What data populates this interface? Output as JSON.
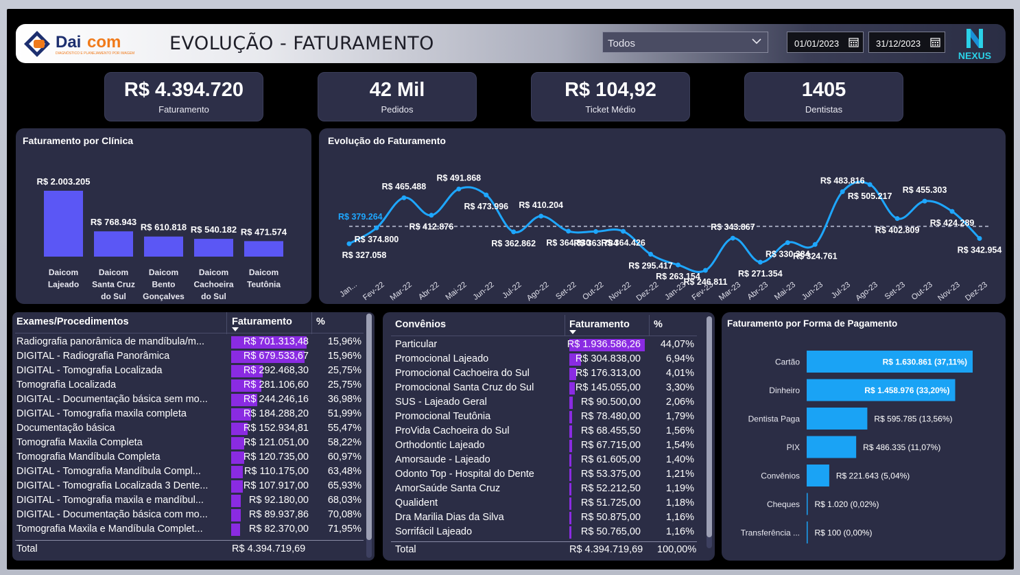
{
  "header": {
    "logo_text_dai": "Dai",
    "logo_text_com": "com",
    "logo_tagline": "DIAGNÓSTICO E PLANEJAMENTO POR IMAGEM",
    "title": "EVOLUÇÃO - FATURAMENTO",
    "filter_value": "Todos",
    "date_start": "01/01/2023",
    "date_end": "31/12/2023",
    "brand": "NEXUS"
  },
  "kpis": [
    {
      "value": "R$ 4.394.720",
      "label": "Faturamento"
    },
    {
      "value": "42 Mil",
      "label": "Pedidos"
    },
    {
      "value": "R$ 104,92",
      "label": "Ticket Médio"
    },
    {
      "value": "1405",
      "label": "Dentistas"
    }
  ],
  "clinic_chart": {
    "title": "Faturamento por Clínica",
    "chart_data": {
      "type": "bar",
      "categories": [
        "Daicom Lajeado",
        "Daicom Santa Cruz do Sul",
        "Daicom Bento Gonçalves",
        "Daicom Cachoeira do Sul",
        "Daicom Teutônia"
      ],
      "category_lines": [
        [
          "Daicom",
          "Lajeado"
        ],
        [
          "Daicom",
          "Santa Cruz",
          "do Sul"
        ],
        [
          "Daicom",
          "Bento",
          "Gonçalves"
        ],
        [
          "Daicom",
          "Cachoeira",
          "do Sul"
        ],
        [
          "Daicom",
          "Teutônia"
        ]
      ],
      "values": [
        2003205,
        768943,
        610818,
        540182,
        471574
      ],
      "labels": [
        "R$ 2.003.205",
        "R$ 768.943",
        "R$ 610.818",
        "R$ 540.182",
        "R$ 471.574"
      ],
      "color": "#5b57f5"
    }
  },
  "evolution_chart": {
    "title": "Evolução do Faturamento",
    "chart_data": {
      "type": "line",
      "categories": [
        "Jan...",
        "Fev-22",
        "Mar-22",
        "Abr-22",
        "Mai-22",
        "Jun-22",
        "Jul-22",
        "Ago-22",
        "Set-22",
        "Out-22",
        "Nov-22",
        "Dez-22",
        "Jan-23",
        "Fev-23",
        "Mar-23",
        "Abr-23",
        "Mai-23",
        "Jun-23",
        "Jul-23",
        "Ago-23",
        "Set-23",
        "Out-23",
        "Nov-23",
        "Dez-23"
      ],
      "values": [
        327058,
        374800,
        465488,
        412876,
        491868,
        473996,
        362862,
        410204,
        364830,
        363784,
        364426,
        295417,
        263154,
        246811,
        343867,
        271354,
        330384,
        324761,
        483816,
        505217,
        402809,
        455303,
        424289,
        342954
      ],
      "labels": [
        "R$ 327.058",
        "R$ 374.800",
        "R$ 465.488",
        "R$ 412.876",
        "R$ 491.868",
        "R$ 473.996",
        "R$ 362.862",
        "R$ 410.204",
        "R$ 364.830",
        "R$ 363.784",
        "R$ 364.426",
        "R$ 295.417",
        "R$ 263.154",
        "R$ 246.811",
        "R$ 343.867",
        "R$ 271.354",
        "R$ 330.384",
        "R$ 324.761",
        "R$ 483.816",
        "R$ 505.217",
        "R$ 402.809",
        "R$ 455.303",
        "R$ 424.289",
        "R$ 342.954"
      ],
      "average_label": "R$ 379.264",
      "average_value": 379264,
      "line_color": "#1ea7ff",
      "average_color": "#9ea3b8",
      "ylim": [
        220000,
        530000
      ]
    }
  },
  "exams_table": {
    "headers": [
      "Exames/Procedimentos",
      "Faturamento",
      "%"
    ],
    "rows": [
      {
        "name": "Radiografia panorâmica de mandíbula/m...",
        "value": "R$ 701.313,48",
        "pct": "15,96%",
        "share": 0.1596
      },
      {
        "name": "DIGITAL - Radiografia Panorâmica",
        "value": "R$ 679.533,67",
        "pct": "15,96%",
        "share": 0.1546
      },
      {
        "name": "DIGITAL - Tomografia Localizada",
        "value": "R$ 292.468,30",
        "pct": "25,75%",
        "share": 0.0666
      },
      {
        "name": "Tomografia Localizada",
        "value": "R$ 281.106,60",
        "pct": "25,75%",
        "share": 0.064
      },
      {
        "name": "DIGITAL - Documentação básica sem mo...",
        "value": "R$ 244.246,16",
        "pct": "36,98%",
        "share": 0.0556
      },
      {
        "name": "DIGITAL - Tomografia maxila completa",
        "value": "R$ 184.288,20",
        "pct": "51,99%",
        "share": 0.0419
      },
      {
        "name": "Documentação básica",
        "value": "R$ 152.934,81",
        "pct": "55,47%",
        "share": 0.0348
      },
      {
        "name": "Tomografia Maxila Completa",
        "value": "R$ 121.051,00",
        "pct": "58,22%",
        "share": 0.0275
      },
      {
        "name": "Tomografia Mandíbula Completa",
        "value": "R$ 120.735,00",
        "pct": "60,97%",
        "share": 0.0275
      },
      {
        "name": "DIGITAL - Tomografia Mandíbula Compl...",
        "value": "R$ 110.175,00",
        "pct": "63,48%",
        "share": 0.0251
      },
      {
        "name": "DIGITAL - Tomografia Localizada 3 Dente...",
        "value": "R$ 107.917,00",
        "pct": "65,93%",
        "share": 0.0246
      },
      {
        "name": "DIGITAL - Tomografia maxila e mandíbul...",
        "value": "R$ 92.180,00",
        "pct": "68,03%",
        "share": 0.021
      },
      {
        "name": "DIGITAL - Documentação básica com mo...",
        "value": "R$ 89.937,86",
        "pct": "70,08%",
        "share": 0.0205
      },
      {
        "name": "Tomografia Maxila e Mandíbula Complet...",
        "value": "R$ 82.370,00",
        "pct": "71,95%",
        "share": 0.0187
      }
    ],
    "total_label": "Total",
    "total_value": "R$ 4.394.719,69"
  },
  "convenios_table": {
    "headers": [
      "Convênios",
      "Faturamento",
      "%"
    ],
    "rows": [
      {
        "name": "Particular",
        "value": "R$ 1.936.586,26",
        "pct": "44,07%",
        "share": 0.4407
      },
      {
        "name": "Promocional Lajeado",
        "value": "R$ 304.838,00",
        "pct": "6,94%",
        "share": 0.0694
      },
      {
        "name": "Promocional Cachoeira do Sul",
        "value": "R$ 176.313,00",
        "pct": "4,01%",
        "share": 0.0401
      },
      {
        "name": "Promocional Santa Cruz do Sul",
        "value": "R$ 145.055,00",
        "pct": "3,30%",
        "share": 0.033
      },
      {
        "name": "SUS - Lajeado Geral",
        "value": "R$ 90.500,00",
        "pct": "2,06%",
        "share": 0.0206
      },
      {
        "name": "Promocional Teutônia",
        "value": "R$ 78.480,00",
        "pct": "1,79%",
        "share": 0.0179
      },
      {
        "name": "ProVida Cachoeira do Sul",
        "value": "R$ 68.455,50",
        "pct": "1,56%",
        "share": 0.0156
      },
      {
        "name": "Orthodontic Lajeado",
        "value": "R$ 67.715,00",
        "pct": "1,54%",
        "share": 0.0154
      },
      {
        "name": "Amorsaude - Lajeado",
        "value": "R$ 61.605,00",
        "pct": "1,40%",
        "share": 0.014
      },
      {
        "name": "Odonto Top - Hospital do Dente",
        "value": "R$ 53.375,00",
        "pct": "1,21%",
        "share": 0.0121
      },
      {
        "name": "AmorSaúde Santa Cruz",
        "value": "R$ 52.212,50",
        "pct": "1,19%",
        "share": 0.0119
      },
      {
        "name": "Qualident",
        "value": "R$ 51.725,00",
        "pct": "1,18%",
        "share": 0.0118
      },
      {
        "name": "Dra Marilia Dias da Silva",
        "value": "R$ 50.875,00",
        "pct": "1,16%",
        "share": 0.0116
      },
      {
        "name": "Sorrifácil Lajeado",
        "value": "R$ 50.765,00",
        "pct": "1,16%",
        "share": 0.0116
      }
    ],
    "total_label": "Total",
    "total_value": "R$ 4.394.719,69",
    "total_pct": "100,00%"
  },
  "payment_chart": {
    "title": "Faturamento por Forma de Pagamento",
    "chart_data": {
      "type": "bar",
      "orientation": "horizontal",
      "categories": [
        "Cartão",
        "Dinheiro",
        "Dentista Paga",
        "PIX",
        "Convênios",
        "Cheques",
        "Transferência ..."
      ],
      "values": [
        1630861,
        1458976,
        595785,
        486335,
        221643,
        1020,
        100
      ],
      "labels": [
        "R$ 1.630.861 (37,11%)",
        "R$ 1.458.976 (33,20%)",
        "R$ 595.785 (13,56%)",
        "R$ 486.335 (11,07%)",
        "R$ 221.643 (5,04%)",
        "R$ 1.020 (0,02%)",
        "R$ 100 (0,00%)"
      ],
      "color": "#1aa3f5"
    }
  }
}
